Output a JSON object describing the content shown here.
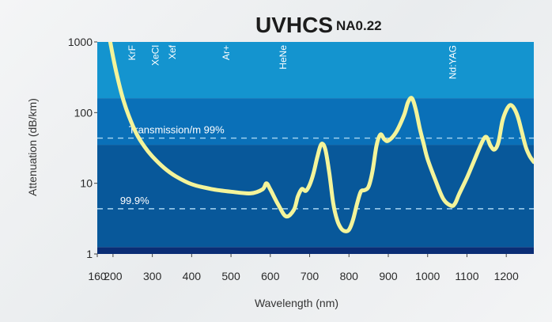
{
  "chart_data": {
    "type": "line",
    "title": "UVHCS",
    "subtitle": "NA0.22",
    "xlabel": "Wavelength (nm)",
    "ylabel": "Attenuation (dB/km)",
    "xlim": [
      160,
      1270
    ],
    "ylim": [
      1,
      1000
    ],
    "yscale": "log",
    "x_ticks": [
      160,
      200,
      300,
      400,
      500,
      600,
      700,
      800,
      900,
      1000,
      1100,
      1200
    ],
    "y_ticks": [
      {
        "value": 1,
        "label": "1"
      },
      {
        "value": 10,
        "label": "10"
      },
      {
        "value": 100,
        "label": "100"
      },
      {
        "value": 1000,
        "label": "1000"
      }
    ],
    "bands": [
      {
        "from": 1,
        "to": 1.25,
        "color": "#0a2d75"
      },
      {
        "from": 1.25,
        "to": 35,
        "color": "#08589a"
      },
      {
        "from": 35,
        "to": 160,
        "color": "#0a70b8"
      },
      {
        "from": 160,
        "to": 1000,
        "color": "#1494cf"
      }
    ],
    "reference_lines": [
      {
        "label": "Transmission/m 99%",
        "y": 43.6,
        "label_x": 240
      },
      {
        "label": "99.9%",
        "y": 4.36,
        "label_x": 218
      }
    ],
    "laser_lines": [
      {
        "label": "KrF",
        "x": 248
      },
      {
        "label": "XeCl",
        "x": 308
      },
      {
        "label": "Xef",
        "x": 351
      },
      {
        "label": "Ar+",
        "x": 488
      },
      {
        "label": "HeNe",
        "x": 633
      },
      {
        "label": "Nd:YAG",
        "x": 1064
      }
    ],
    "series": [
      {
        "color": "#f4f49a",
        "x": [
          193,
          200,
          210,
          225,
          240,
          260,
          280,
          300,
          330,
          360,
          400,
          450,
          500,
          550,
          580,
          590,
          600,
          620,
          640,
          660,
          670,
          680,
          690,
          700,
          710,
          720,
          730,
          740,
          750,
          760,
          770,
          780,
          790,
          800,
          810,
          820,
          830,
          840,
          850,
          860,
          870,
          880,
          890,
          900,
          920,
          940,
          950,
          960,
          970,
          980,
          990,
          1000,
          1020,
          1040,
          1060,
          1070,
          1080,
          1100,
          1120,
          1140,
          1150,
          1160,
          1170,
          1180,
          1190,
          1200,
          1210,
          1220,
          1230,
          1240,
          1250,
          1260,
          1270
        ],
        "y": [
          1000,
          620,
          340,
          160,
          90,
          50,
          33,
          24,
          16.5,
          12.5,
          9.7,
          8.3,
          7.6,
          7.2,
          8.2,
          10,
          8.2,
          5,
          3.4,
          4.2,
          6.5,
          8.3,
          7.8,
          9.5,
          14,
          24,
          36,
          30,
          14,
          5.2,
          3,
          2.3,
          2.1,
          2.2,
          3,
          5,
          7.6,
          8,
          9,
          15,
          34,
          49,
          42,
          40,
          53,
          92,
          140,
          160,
          110,
          60,
          36,
          22,
          11,
          6,
          4.8,
          5.2,
          7,
          12,
          22,
          40,
          45,
          34,
          30,
          38,
          75,
          108,
          128,
          115,
          85,
          52,
          32,
          24,
          20
        ]
      }
    ],
    "grid": false,
    "legend": "none"
  }
}
